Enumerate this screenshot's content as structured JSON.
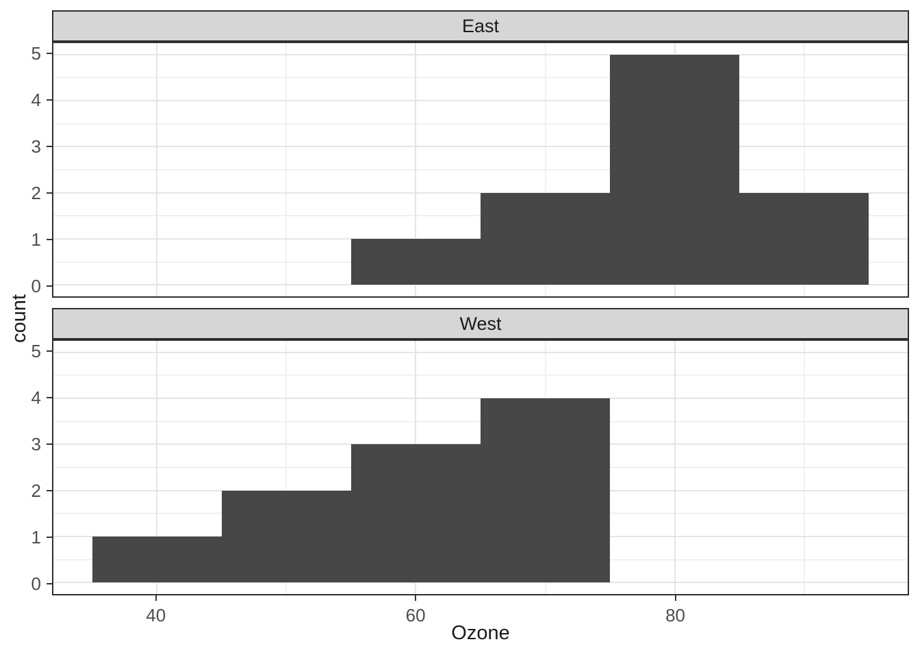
{
  "chart_data": {
    "type": "bar",
    "variant": "faceted-histogram",
    "title": "",
    "xlabel": "Ozone",
    "ylabel": "count",
    "x_domain": [
      32,
      98
    ],
    "y_domain": [
      -0.25,
      5.25
    ],
    "x_ticks": [
      40,
      60,
      80
    ],
    "x_minor_gridlines": [
      50,
      70,
      90
    ],
    "y_ticks": [
      0,
      1,
      2,
      3,
      4,
      5
    ],
    "y_minor_gridlines": [
      0.5,
      1.5,
      2.5,
      3.5,
      4.5
    ],
    "binwidth": 10,
    "grid": true,
    "legend_position": "none",
    "facets": [
      {
        "label": "East",
        "bins": [
          {
            "x0": 55,
            "x1": 65,
            "count": 1
          },
          {
            "x0": 65,
            "x1": 75,
            "count": 2
          },
          {
            "x0": 75,
            "x1": 85,
            "count": 5
          },
          {
            "x0": 85,
            "x1": 95,
            "count": 2
          }
        ]
      },
      {
        "label": "West",
        "bins": [
          {
            "x0": 35,
            "x1": 45,
            "count": 1
          },
          {
            "x0": 45,
            "x1": 55,
            "count": 2
          },
          {
            "x0": 55,
            "x1": 65,
            "count": 3
          },
          {
            "x0": 65,
            "x1": 75,
            "count": 4
          }
        ]
      }
    ],
    "colors": {
      "figure_background": "#FFFFFF",
      "panel_background": "#FFFFFF",
      "panel_border": "#2E2E2E",
      "strip_background": "#D6D6D6",
      "strip_border": "#2E2E2E",
      "bar_fill": "#474747",
      "grid_major": "#E4E4E4",
      "grid_minor": "#F0F0F0",
      "axis_tick": "#333333",
      "tick_label": "#4D4D4D",
      "title_color": "#1A1A1A"
    }
  }
}
